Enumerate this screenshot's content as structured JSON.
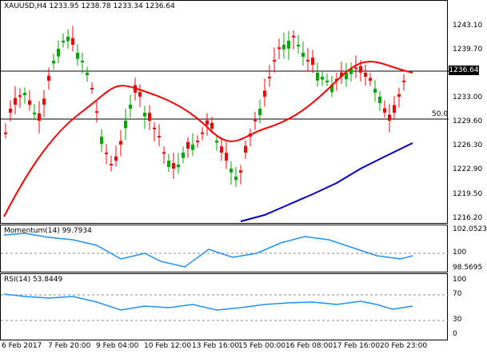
{
  "main_pane": {
    "title": "XAUUSD,H4  1233.95 1238.78 1233.34 1236.64",
    "price_ticks": [
      "1243.10",
      "1239.70",
      "1233.00",
      "1229.60",
      "1226.30",
      "1222.90",
      "1219.50",
      "1216.20"
    ],
    "current_price": "1236.64",
    "level_label": "50.0"
  },
  "momentum_pane": {
    "title": "Momentum(14) 99.7934",
    "ticks": [
      "102.0523",
      "100",
      "98.5695"
    ]
  },
  "rsi_pane": {
    "title": "RSI(14) 53.8449",
    "ticks": [
      "100",
      "70",
      "30",
      "0"
    ]
  },
  "x_axis": {
    "labels": [
      "6 Feb 2017",
      "7 Feb 20:00",
      "9 Feb 04:00",
      "10 Feb 12:00",
      "13 Feb 16:00",
      "15 Feb 00:00",
      "16 Feb 08:00",
      "17 Feb 16:00",
      "20 Feb 23:00"
    ]
  },
  "colors": {
    "bull": "#00aa00",
    "bear": "#ff0000",
    "sma_fast": "#ff0000",
    "sma_slow": "#0000cc",
    "indicator": "#1e90ff"
  }
}
